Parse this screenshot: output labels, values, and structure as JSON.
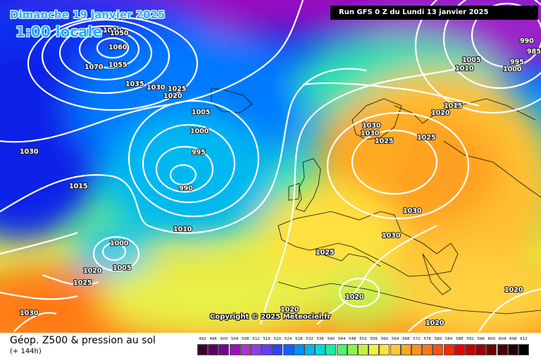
{
  "header": {
    "date": "Dimanche 19 janvier 2025",
    "time": "1:00 locale",
    "run": "Run GFS 0 Z du Lundi 13 janvier 2025"
  },
  "copyright": "Copyright © 2025 Meteociel.fr",
  "footer": {
    "title": "Géop. Z500 & pression au sol",
    "lead": "(+ 144h)"
  },
  "isobar_labels": [
    "1040",
    "1050",
    "1060",
    "1055",
    "1070",
    "1035",
    "1030",
    "1025",
    "1020",
    "1005",
    "1000",
    "995",
    "990",
    "1010",
    "1015",
    "1000",
    "1005",
    "1020",
    "1025",
    "1030",
    "1030",
    "1030",
    "1025",
    "1030",
    "1025",
    "1015",
    "1020",
    "1005",
    "1010",
    "1000",
    "995",
    "985",
    "990",
    "1030",
    "1030",
    "1025",
    "1020",
    "1020",
    "1020",
    "1020"
  ],
  "colorscale": {
    "labels": [
      "492",
      "496",
      "500",
      "504",
      "508",
      "512",
      "516",
      "520",
      "524",
      "528",
      "532",
      "536",
      "540",
      "544",
      "548",
      "552",
      "556",
      "560",
      "564",
      "568",
      "572",
      "576",
      "580",
      "584",
      "588",
      "592",
      "596",
      "600",
      "604",
      "608",
      "612"
    ],
    "colors": [
      "#3a0030",
      "#5a0060",
      "#7a0090",
      "#9a10b8",
      "#b030d0",
      "#9040e0",
      "#6040f0",
      "#3040ff",
      "#1060ff",
      "#0090ff",
      "#00b8f0",
      "#00d8d8",
      "#20e8a0",
      "#50f070",
      "#90f050",
      "#c8f040",
      "#f0f040",
      "#ffe040",
      "#ffc830",
      "#ffa820",
      "#ff9020",
      "#ff7818",
      "#ff5010",
      "#ff2800",
      "#e80000",
      "#c00000",
      "#980000",
      "#700000",
      "#480000",
      "#200000",
      "#000000"
    ]
  }
}
